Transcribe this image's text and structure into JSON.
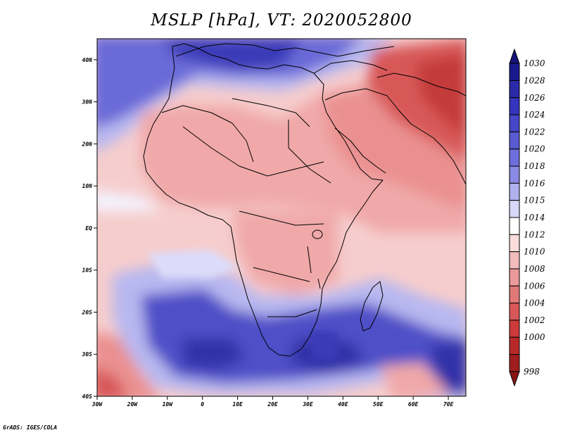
{
  "title": "MSLP [hPa], VT: 2020052800",
  "credit": "GrADS: IGES/COLA",
  "axes": {
    "lat_labels": [
      "40N",
      "30N",
      "20N",
      "10N",
      "EQ",
      "10S",
      "20S",
      "30S",
      "40S"
    ],
    "lon_labels": [
      "30W",
      "20W",
      "10W",
      "0",
      "10E",
      "20E",
      "30E",
      "40E",
      "50E",
      "60E",
      "70E"
    ],
    "lat_values": [
      40,
      30,
      20,
      10,
      0,
      -10,
      -20,
      -30,
      -40
    ],
    "lon_values": [
      -30,
      -20,
      -10,
      0,
      10,
      20,
      30,
      40,
      50,
      60,
      70
    ],
    "lat_range": [
      -40,
      45
    ],
    "lon_range": [
      -30,
      75
    ]
  },
  "colorbar": {
    "levels": [
      "1030",
      "1028",
      "1026",
      "1024",
      "1022",
      "1020",
      "1018",
      "1016",
      "1015",
      "1014",
      "1012",
      "1010",
      "1008",
      "1006",
      "1004",
      "1002",
      "1000",
      "998"
    ],
    "colors": [
      "#1a1a8c",
      "#2a2aa8",
      "#3434bc",
      "#4646c8",
      "#5a5ad2",
      "#6e6edc",
      "#8a8ae4",
      "#b0b0ee",
      "#d8d8f8",
      "#ffffff",
      "#fadcdc",
      "#f2bcbc",
      "#ea9a9a",
      "#e07878",
      "#d85858",
      "#cc3a3a",
      "#b82a2a",
      "#a01e1e"
    ]
  },
  "field_colors": {
    "ocean_low": "#fadcdc",
    "ocean_mid": "#f6cdcd",
    "ocean_white": "#f4f4ff",
    "land_low": "#f0a8a8",
    "land_lower": "#ea9090",
    "heat_low": "#d85858",
    "heat_core": "#c43a3a",
    "high_north": "#6a6ad8",
    "high_north_core": "#3a3ab8",
    "high_south": "#5050c8",
    "high_south_core": "#3030a8",
    "blue_light": "#b8b8f0",
    "blue_lighter": "#dcdcfa"
  }
}
